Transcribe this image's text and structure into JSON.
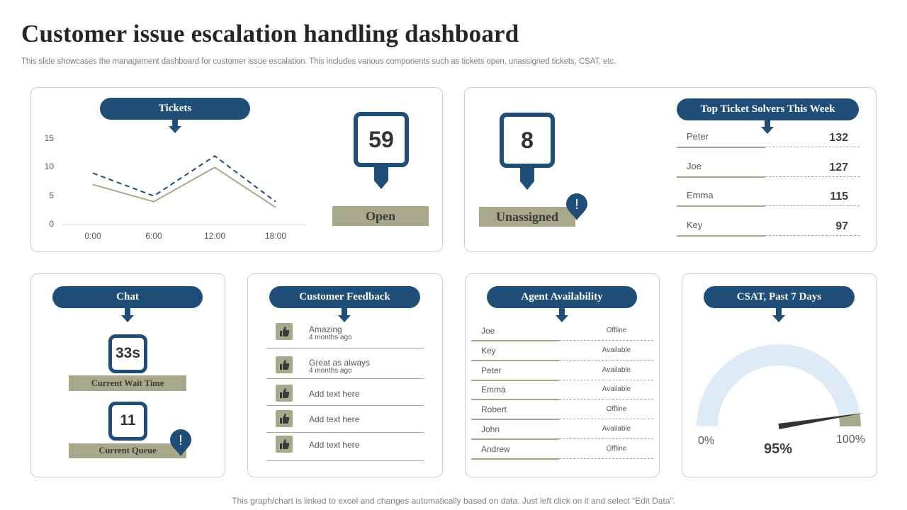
{
  "header": {
    "title": "Customer issue escalation handling dashboard",
    "subtitle": "This slide showcases the management dashboard for customer issue escalation. This includes various components such as tickets open, unassigned tickets, CSAT, etc."
  },
  "footer": {
    "note": "This graph/chart is linked to excel and changes automatically based on data. Just left click on it and select “Edit Data”."
  },
  "colors": {
    "navy": "#1f4e79",
    "olive": "#a8a98a",
    "gauge_light": "#deebf7",
    "dark": "#404040"
  },
  "tickets": {
    "title": "Tickets",
    "open_count": "59",
    "open_label": "Open"
  },
  "chart_data": {
    "type": "line",
    "x": [
      "0:00",
      "6:00",
      "12:00",
      "18:00"
    ],
    "y_ticks": [
      "0",
      "5",
      "10",
      "15"
    ],
    "ylim": [
      0,
      15
    ],
    "series": [
      {
        "values": [
          9,
          5,
          12,
          4
        ],
        "style": "dashed",
        "color": "#1f4e79"
      },
      {
        "values": [
          7,
          4,
          10,
          3
        ],
        "style": "solid",
        "color": "#a8a98a"
      }
    ]
  },
  "unassigned": {
    "count": "8",
    "label": "Unassigned",
    "alert_glyph": "!"
  },
  "top_solvers": {
    "title": "Top Ticket Solvers This Week",
    "rows": [
      {
        "name": "Peter",
        "value": "132"
      },
      {
        "name": "Joe",
        "value": "127"
      },
      {
        "name": "Emma",
        "value": "115"
      },
      {
        "name": "Key",
        "value": "97"
      }
    ]
  },
  "chat": {
    "title": "Chat",
    "wait_value": "33s",
    "wait_label": "Current Wait Time",
    "queue_value": "11",
    "queue_label": "Current Queue",
    "alert_glyph": "!"
  },
  "feedback": {
    "title": "Customer Feedback",
    "items": [
      {
        "text": "Amazing",
        "sub": "4 months ago",
        "icon": "thumbs-up-icon"
      },
      {
        "text": "Great as always",
        "sub": "4 months ago",
        "icon": "thumbs-up-icon"
      },
      {
        "text": "Add text here",
        "sub": "",
        "icon": "thumbs-up-icon"
      },
      {
        "text": "Add text here",
        "sub": "",
        "icon": "thumbs-up-icon"
      },
      {
        "text": "Add text here",
        "sub": "",
        "icon": "thumbs-up-icon"
      }
    ]
  },
  "agents": {
    "title": "Agent Availability",
    "rows": [
      {
        "name": "Joe",
        "status": "Offline"
      },
      {
        "name": "Key",
        "status": "Available"
      },
      {
        "name": "Peter",
        "status": "Available"
      },
      {
        "name": "Emma",
        "status": "Available"
      },
      {
        "name": "Robert",
        "status": "Offline"
      },
      {
        "name": "John",
        "status": "Available"
      },
      {
        "name": "Andrew",
        "status": "Offline"
      }
    ]
  },
  "csat": {
    "title": "CSAT, Past 7 Days",
    "value_pct": 95,
    "value_label": "95%",
    "min_label": "0%",
    "max_label": "100%"
  }
}
